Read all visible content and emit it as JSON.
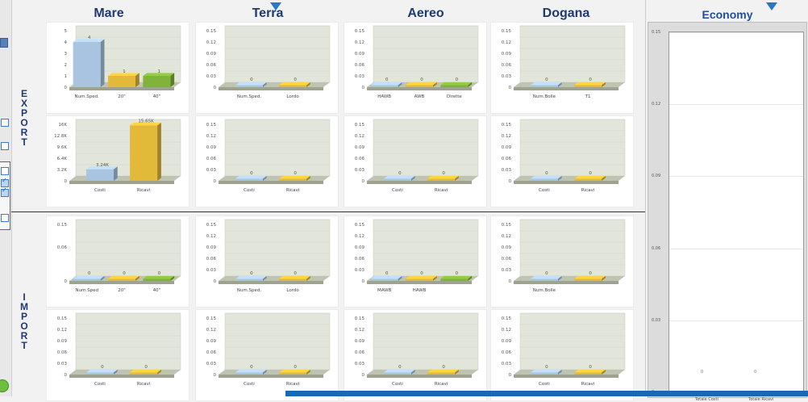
{
  "columns": [
    "Mare",
    "Terra",
    "Aereo",
    "Dogana"
  ],
  "economy_title": "Economy",
  "sections": {
    "export": "EXPORT",
    "import": "IMPORT"
  },
  "colors": {
    "blue": "#a9c4e0",
    "yellow": "#e3b93a",
    "green": "#7fb33a",
    "accent": "#1f3a73"
  },
  "charts": {
    "export_row1": [
      {
        "ticks": [
          "5",
          "4",
          "3",
          "2",
          "1",
          "0"
        ],
        "ymax": 5,
        "categories": [
          "Num.Sped.",
          "20\"",
          "40\""
        ],
        "values": [
          4,
          1,
          1
        ],
        "value_labels": [
          "4",
          "1",
          "1"
        ],
        "colors": [
          "blue",
          "yellow",
          "green"
        ]
      },
      {
        "ticks": [
          "0.15",
          "0.12",
          "0.09",
          "0.06",
          "0.03",
          "0"
        ],
        "ymax": 0.15,
        "categories": [
          "Num.Sped.",
          "Lordo"
        ],
        "values": [
          0,
          0
        ],
        "value_labels": [
          "0",
          "0"
        ],
        "colors": [
          "blue",
          "yellow"
        ]
      },
      {
        "ticks": [
          "0.15",
          "0.12",
          "0.09",
          "0.06",
          "0.03",
          "0"
        ],
        "ymax": 0.15,
        "categories": [
          "HAWB",
          "AWB",
          "Dirette"
        ],
        "values": [
          0,
          0,
          0
        ],
        "value_labels": [
          "0",
          "0",
          "0"
        ],
        "colors": [
          "blue",
          "yellow",
          "green"
        ]
      },
      {
        "ticks": [
          "0.15",
          "0.12",
          "0.09",
          "0.06",
          "0.03",
          "0"
        ],
        "ymax": 0.15,
        "categories": [
          "Num.Bolle",
          "T1"
        ],
        "values": [
          0,
          0
        ],
        "value_labels": [
          "0",
          "0"
        ],
        "colors": [
          "blue",
          "yellow"
        ]
      }
    ],
    "export_row2": [
      {
        "ticks": [
          "16K",
          "12.8K",
          "9.6K",
          "6.4K",
          "3.2K",
          "0"
        ],
        "ymax": 16000,
        "categories": [
          "Costi",
          "Ricavi"
        ],
        "values": [
          3240,
          15650
        ],
        "value_labels": [
          "3.24K",
          "15.65K"
        ],
        "colors": [
          "blue",
          "yellow"
        ]
      },
      {
        "ticks": [
          "0.15",
          "0.12",
          "0.09",
          "0.06",
          "0.03",
          "0"
        ],
        "ymax": 0.15,
        "categories": [
          "Costi",
          "Ricavi"
        ],
        "values": [
          0,
          0
        ],
        "value_labels": [
          "0",
          "0"
        ],
        "colors": [
          "blue",
          "yellow"
        ]
      },
      {
        "ticks": [
          "0.15",
          "0.12",
          "0.09",
          "0.06",
          "0.03",
          "0"
        ],
        "ymax": 0.15,
        "categories": [
          "Costi",
          "Ricavi"
        ],
        "values": [
          0,
          0
        ],
        "value_labels": [
          "0",
          "0"
        ],
        "colors": [
          "blue",
          "yellow"
        ]
      },
      {
        "ticks": [
          "0.15",
          "0.12",
          "0.09",
          "0.06",
          "0.03",
          "0"
        ],
        "ymax": 0.15,
        "categories": [
          "Costi",
          "Ricavi"
        ],
        "values": [
          0,
          0
        ],
        "value_labels": [
          "0",
          "0"
        ],
        "colors": [
          "blue",
          "yellow"
        ]
      }
    ],
    "import_row1": [
      {
        "ticks": [
          "0.15",
          "",
          "0.06",
          "",
          "",
          "0"
        ],
        "ymax": 0.15,
        "categories": [
          "Num.Sped\n.",
          "20\"",
          "40\""
        ],
        "values": [
          0,
          0,
          0
        ],
        "value_labels": [
          "0",
          "0",
          "0"
        ],
        "colors": [
          "blue",
          "yellow",
          "green"
        ]
      },
      {
        "ticks": [
          "0.15",
          "0.12",
          "0.09",
          "0.06",
          "0.03",
          "0"
        ],
        "ymax": 0.15,
        "categories": [
          "Num.Sped.",
          "Lordo"
        ],
        "values": [
          0,
          0
        ],
        "value_labels": [
          "0",
          "0"
        ],
        "colors": [
          "blue",
          "yellow"
        ]
      },
      {
        "ticks": [
          "0.15",
          "0.12",
          "0.09",
          "0.06",
          "0.03",
          "0"
        ],
        "ymax": 0.15,
        "categories": [
          "MAWB",
          "HAWB",
          ""
        ],
        "values": [
          0,
          0,
          0
        ],
        "value_labels": [
          "0",
          "0",
          "0"
        ],
        "colors": [
          "blue",
          "yellow",
          "green"
        ]
      },
      {
        "ticks": [
          "0.15",
          "0.12",
          "0.09",
          "0.06",
          "0.03",
          "0"
        ],
        "ymax": 0.15,
        "categories": [
          "Num.Bolle",
          ""
        ],
        "values": [
          0,
          0
        ],
        "value_labels": [
          "0",
          "0"
        ],
        "colors": [
          "blue",
          "yellow"
        ]
      }
    ],
    "import_row2": [
      {
        "ticks": [
          "0.15",
          "0.12",
          "0.09",
          "0.06",
          "0.03",
          "0"
        ],
        "ymax": 0.15,
        "categories": [
          "Costi",
          "Ricavi"
        ],
        "values": [
          0,
          0
        ],
        "value_labels": [
          "0",
          "0"
        ],
        "colors": [
          "blue",
          "yellow"
        ]
      },
      {
        "ticks": [
          "0.15",
          "0.12",
          "0.09",
          "0.06",
          "0.03",
          "0"
        ],
        "ymax": 0.15,
        "categories": [
          "Costi",
          "Ricavi"
        ],
        "values": [
          0,
          0
        ],
        "value_labels": [
          "0",
          "0"
        ],
        "colors": [
          "blue",
          "yellow"
        ]
      },
      {
        "ticks": [
          "0.15",
          "0.12",
          "0.09",
          "0.06",
          "0.03",
          "0"
        ],
        "ymax": 0.15,
        "categories": [
          "Costi",
          "Ricavi"
        ],
        "values": [
          0,
          0
        ],
        "value_labels": [
          "0",
          "0"
        ],
        "colors": [
          "blue",
          "yellow"
        ]
      },
      {
        "ticks": [
          "0.15",
          "0.12",
          "0.09",
          "0.06",
          "0.03",
          "0"
        ],
        "ymax": 0.15,
        "categories": [
          "Costi",
          "Ricavi"
        ],
        "values": [
          0,
          0
        ],
        "value_labels": [
          "0",
          "0"
        ],
        "colors": [
          "blue",
          "yellow"
        ]
      }
    ]
  },
  "economy_chart": {
    "ticks": [
      "0.15",
      "0.12",
      "0.09",
      "0.06",
      "0.03",
      "0"
    ],
    "categories": [
      "Totale Costi",
      "Totale Ricavi"
    ],
    "value_labels": [
      "0",
      "0"
    ]
  }
}
